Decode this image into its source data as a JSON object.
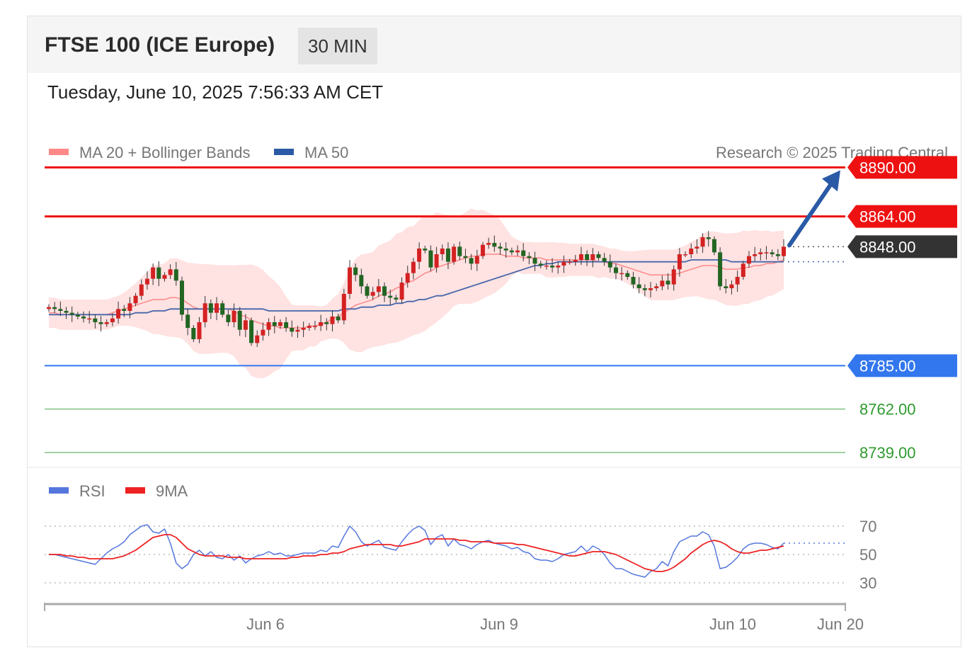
{
  "header": {
    "title": "FTSE 100 (ICE Europe)",
    "interval": "30 MIN",
    "timestamp": "Tuesday, June 10, 2025 7:56:33 AM CET"
  },
  "legend": {
    "ma20": "MA 20 + Bollinger Bands",
    "ma50": "MA 50",
    "credit": "Research © 2025 Trading Central"
  },
  "rsi_legend": {
    "rsi": "RSI",
    "ma9": "9MA"
  },
  "colors": {
    "resistance": "#ee1111",
    "support": "#3377ee",
    "green": "#2e9a2e",
    "current": "#333333",
    "up_candle": "#d42222",
    "down_candle": "#226622",
    "bands": "#ffd6d6",
    "ma20": "#ff8888",
    "ma50": "#4466aa",
    "rsi": "#5577dd",
    "rsi_ma": "#ee2222",
    "arrow": "#2a5aa6"
  },
  "chart_data": [
    {
      "type": "candlestick",
      "yrange": [
        8730,
        8895
      ],
      "levels": [
        {
          "label": "8890.00",
          "value": 8890,
          "kind": "resistance"
        },
        {
          "label": "8864.00",
          "value": 8864,
          "kind": "resistance"
        },
        {
          "label": "8848.00",
          "value": 8848,
          "kind": "current"
        },
        {
          "label": "8785.00",
          "value": 8785,
          "kind": "support"
        },
        {
          "label": "8762.00",
          "value": 8762,
          "kind": "support-minor"
        },
        {
          "label": "8739.00",
          "value": 8739,
          "kind": "support-minor"
        }
      ],
      "forecast_arrow": {
        "from": 8848,
        "to": 8890
      },
      "close": [
        8816,
        8815,
        8814,
        8813,
        8812,
        8811,
        8810,
        8810,
        8808,
        8807,
        8808,
        8810,
        8815,
        8814,
        8818,
        8822,
        8828,
        8831,
        8837,
        8831,
        8833,
        8836,
        8830,
        8812,
        8805,
        8799,
        8808,
        8818,
        8813,
        8818,
        8812,
        8808,
        8814,
        8804,
        8809,
        8797,
        8801,
        8804,
        8808,
        8806,
        8808,
        8805,
        8803,
        8804,
        8805,
        8806,
        8806,
        8808,
        8807,
        8811,
        8809,
        8823,
        8837,
        8833,
        8827,
        8822,
        8824,
        8827,
        8822,
        8821,
        8820,
        8829,
        8834,
        8840,
        8847,
        8846,
        8837,
        8844,
        8847,
        8840,
        8848,
        8843,
        8842,
        8839,
        8843,
        8849,
        8850,
        8848,
        8847,
        8846,
        8845,
        8846,
        8843,
        8842,
        8839,
        8838,
        8838,
        8837,
        8838,
        8840,
        8840,
        8841,
        8844,
        8841,
        8844,
        8842,
        8840,
        8837,
        8834,
        8834,
        8832,
        8828,
        8826,
        8825,
        8826,
        8827,
        8830,
        8828,
        8836,
        8844,
        8844,
        8847,
        8848,
        8853,
        8852,
        8845,
        8827,
        8826,
        8828,
        8832,
        8839,
        8843,
        8844,
        8845,
        8845,
        8844,
        8843,
        8848
      ],
      "ma20": [
        8813,
        8813,
        8812,
        8812,
        8812,
        8812,
        8812,
        8812,
        8812,
        8812,
        8812,
        8813,
        8814,
        8815,
        8816,
        8817,
        8818,
        8819,
        8820,
        8820,
        8820,
        8821,
        8821,
        8820,
        8818,
        8816,
        8815,
        8815,
        8815,
        8815,
        8815,
        8815,
        8814,
        8812,
        8811,
        8809,
        8808,
        8807,
        8806,
        8806,
        8805,
        8805,
        8805,
        8805,
        8805,
        8806,
        8806,
        8807,
        8808,
        8810,
        8811,
        8813,
        8815,
        8817,
        8818,
        8819,
        8820,
        8822,
        8823,
        8824,
        8826,
        8827,
        8829,
        8830,
        8832,
        8834,
        8835,
        8837,
        8838,
        8839,
        8840,
        8841,
        8842,
        8843,
        8843,
        8844,
        8844,
        8844,
        8844,
        8843,
        8843,
        8843,
        8842,
        8842,
        8842,
        8842,
        8841,
        8841,
        8841,
        8841,
        8841,
        8841,
        8841,
        8841,
        8841,
        8840,
        8840,
        8839,
        8839,
        8838,
        8837,
        8836,
        8835,
        8834,
        8833,
        8833,
        8833,
        8833,
        8833,
        8834,
        8835,
        8836,
        8837,
        8838,
        8838,
        8838,
        8837,
        8836,
        8836,
        8836,
        8837,
        8837,
        8838,
        8838,
        8839,
        8839,
        8840,
        8841
      ],
      "ma50": [
        8812,
        8812,
        8812,
        8812,
        8812,
        8812,
        8812,
        8812,
        8812,
        8812,
        8812,
        8812,
        8812,
        8812,
        8812,
        8813,
        8813,
        8813,
        8814,
        8814,
        8814,
        8815,
        8815,
        8815,
        8815,
        8815,
        8815,
        8815,
        8815,
        8815,
        8815,
        8815,
        8815,
        8815,
        8815,
        8815,
        8815,
        8815,
        8814,
        8814,
        8814,
        8814,
        8814,
        8814,
        8814,
        8814,
        8814,
        8814,
        8814,
        8814,
        8814,
        8815,
        8815,
        8815,
        8816,
        8816,
        8816,
        8817,
        8817,
        8817,
        8818,
        8818,
        8819,
        8819,
        8820,
        8820,
        8821,
        8822,
        8822,
        8823,
        8824,
        8825,
        8826,
        8827,
        8828,
        8829,
        8830,
        8831,
        8832,
        8833,
        8834,
        8835,
        8836,
        8837,
        8838,
        8838,
        8839,
        8839,
        8840,
        8840,
        8840,
        8840,
        8840,
        8840,
        8840,
        8840,
        8840,
        8840,
        8840,
        8840,
        8840,
        8840,
        8840,
        8840,
        8840,
        8840,
        8840,
        8840,
        8840,
        8840,
        8840,
        8841,
        8841,
        8841,
        8841,
        8841,
        8841,
        8841,
        8840,
        8840,
        8840,
        8840,
        8840,
        8840,
        8840,
        8840,
        8840,
        8840
      ]
    },
    {
      "type": "line",
      "name": "RSI",
      "y_ticks": [
        70,
        50,
        30
      ],
      "x_ticks": [
        "Jun 6",
        "Jun 9",
        "Jun 10",
        "Jun 20"
      ],
      "series": [
        {
          "name": "RSI",
          "values": [
            50,
            50,
            49,
            48,
            47,
            46,
            45,
            44,
            43,
            47,
            51,
            54,
            56,
            59,
            64,
            67,
            70,
            71,
            66,
            65,
            68,
            58,
            44,
            40,
            43,
            50,
            53,
            49,
            52,
            48,
            47,
            50,
            46,
            49,
            44,
            47,
            49,
            50,
            52,
            50,
            51,
            49,
            49,
            50,
            51,
            51,
            51,
            53,
            52,
            56,
            55,
            63,
            70,
            66,
            59,
            56,
            58,
            60,
            55,
            54,
            53,
            59,
            64,
            68,
            70,
            67,
            57,
            62,
            64,
            56,
            61,
            57,
            56,
            54,
            57,
            59,
            60,
            58,
            57,
            56,
            54,
            55,
            52,
            51,
            47,
            46,
            46,
            45,
            47,
            50,
            51,
            52,
            56,
            52,
            56,
            54,
            50,
            44,
            40,
            40,
            38,
            36,
            35,
            34,
            38,
            40,
            45,
            42,
            52,
            59,
            61,
            63,
            63,
            66,
            64,
            56,
            40,
            41,
            44,
            48,
            54,
            57,
            58,
            58,
            57,
            55,
            54,
            58
          ]
        },
        {
          "name": "9MA",
          "values": [
            50,
            50,
            50,
            49,
            49,
            48,
            48,
            47,
            47,
            47,
            47,
            47,
            48,
            49,
            51,
            53,
            56,
            59,
            62,
            63,
            64,
            64,
            62,
            58,
            54,
            52,
            50,
            49,
            49,
            49,
            49,
            48,
            48,
            48,
            47,
            47,
            47,
            47,
            47,
            47,
            47,
            47,
            48,
            48,
            49,
            49,
            49,
            50,
            50,
            51,
            51,
            52,
            54,
            55,
            56,
            57,
            57,
            57,
            57,
            57,
            56,
            56,
            57,
            58,
            59,
            61,
            61,
            61,
            61,
            61,
            61,
            60,
            60,
            59,
            59,
            59,
            59,
            58,
            58,
            58,
            58,
            57,
            57,
            56,
            55,
            54,
            53,
            52,
            51,
            50,
            49,
            49,
            50,
            51,
            52,
            52,
            52,
            51,
            50,
            48,
            46,
            44,
            42,
            40,
            39,
            38,
            38,
            39,
            41,
            44,
            47,
            51,
            54,
            57,
            59,
            60,
            59,
            57,
            54,
            52,
            51,
            51,
            52,
            53,
            53,
            54,
            55,
            56
          ]
        }
      ]
    }
  ]
}
